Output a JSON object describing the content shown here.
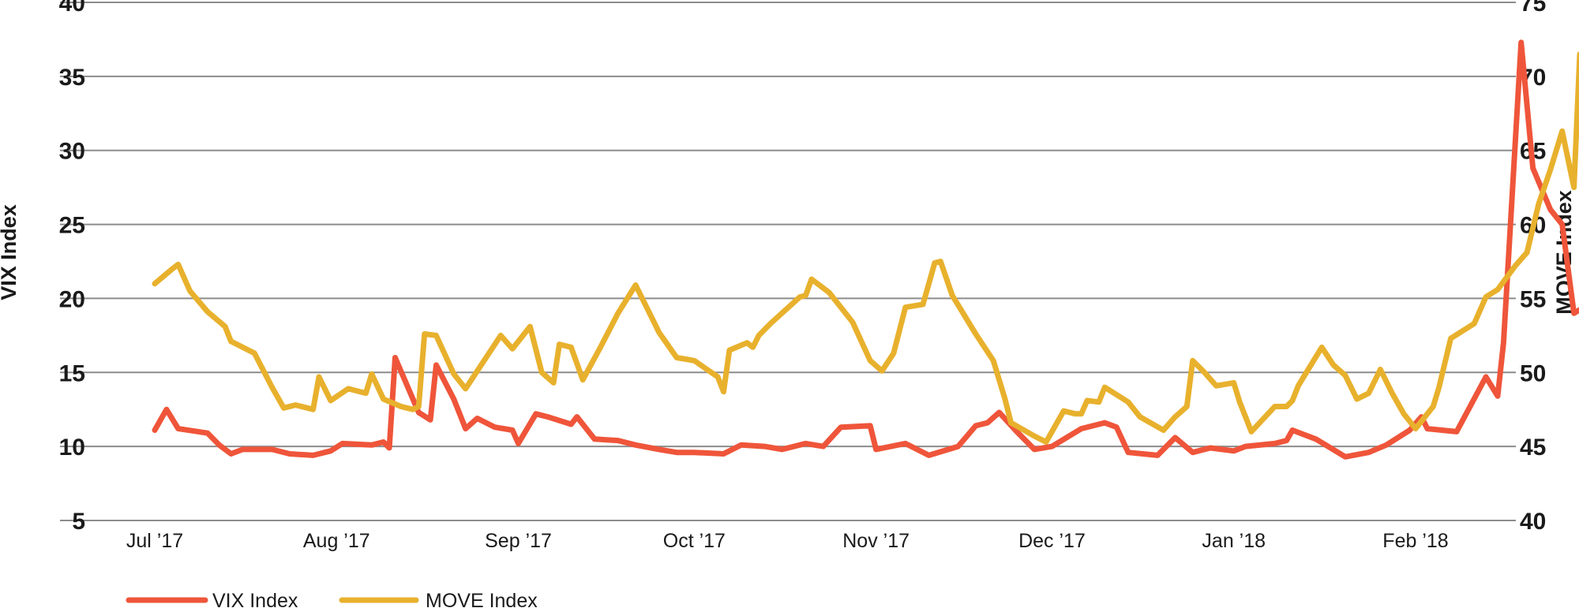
{
  "chart_data": {
    "type": "line",
    "title": "",
    "y_left": {
      "label": "VIX Index",
      "ticks": [
        5,
        10,
        15,
        20,
        25,
        30,
        35,
        40
      ],
      "range": [
        5,
        40
      ]
    },
    "y_right": {
      "label": "MOVE Index",
      "ticks": [
        40,
        45,
        50,
        55,
        60,
        65,
        70,
        75
      ],
      "range": [
        40,
        75
      ]
    },
    "x_ticks": [
      "Jul ’17",
      "Aug ’17",
      "Sep ’17",
      "Oct ’17",
      "Nov ’17",
      "Dec ’17",
      "Jan ’18",
      "Feb ’18"
    ],
    "x_tick_dates": [
      "2017-07-01",
      "2017-08-01",
      "2017-09-01",
      "2017-10-01",
      "2017-11-01",
      "2017-12-01",
      "2018-01-01",
      "2018-02-01"
    ],
    "grid": "horizontal",
    "legend_position": "bottom-left",
    "series": [
      {
        "name": "VIX Index",
        "axis": "left",
        "color": "#ef553a",
        "points": [
          [
            "2017-07-01",
            11.1
          ],
          [
            "2017-07-03",
            12.5
          ],
          [
            "2017-07-05",
            11.2
          ],
          [
            "2017-07-10",
            10.9
          ],
          [
            "2017-07-12",
            10.1
          ],
          [
            "2017-07-14",
            9.5
          ],
          [
            "2017-07-16",
            9.8
          ],
          [
            "2017-07-21",
            9.8
          ],
          [
            "2017-07-24",
            9.5
          ],
          [
            "2017-07-28",
            9.4
          ],
          [
            "2017-07-31",
            9.7
          ],
          [
            "2017-08-02",
            10.2
          ],
          [
            "2017-08-07",
            10.1
          ],
          [
            "2017-08-09",
            10.3
          ],
          [
            "2017-08-10",
            9.9
          ],
          [
            "2017-08-11",
            16.0
          ],
          [
            "2017-08-15",
            12.3
          ],
          [
            "2017-08-17",
            11.8
          ],
          [
            "2017-08-18",
            15.5
          ],
          [
            "2017-08-21",
            13.2
          ],
          [
            "2017-08-23",
            11.2
          ],
          [
            "2017-08-25",
            11.9
          ],
          [
            "2017-08-28",
            11.3
          ],
          [
            "2017-08-31",
            11.1
          ],
          [
            "2017-09-01",
            10.2
          ],
          [
            "2017-09-04",
            12.2
          ],
          [
            "2017-09-06",
            12.0
          ],
          [
            "2017-09-10",
            11.5
          ],
          [
            "2017-09-11",
            12.0
          ],
          [
            "2017-09-14",
            10.5
          ],
          [
            "2017-09-18",
            10.4
          ],
          [
            "2017-09-21",
            10.1
          ],
          [
            "2017-09-25",
            9.8
          ],
          [
            "2017-09-28",
            9.6
          ],
          [
            "2017-10-01",
            9.6
          ],
          [
            "2017-10-06",
            9.5
          ],
          [
            "2017-10-09",
            10.1
          ],
          [
            "2017-10-13",
            10.0
          ],
          [
            "2017-10-16",
            9.8
          ],
          [
            "2017-10-20",
            10.2
          ],
          [
            "2017-10-23",
            10.0
          ],
          [
            "2017-10-26",
            11.3
          ],
          [
            "2017-10-31",
            11.4
          ],
          [
            "2017-11-01",
            9.8
          ],
          [
            "2017-11-06",
            10.2
          ],
          [
            "2017-11-10",
            9.4
          ],
          [
            "2017-11-15",
            10.0
          ],
          [
            "2017-11-18",
            11.4
          ],
          [
            "2017-11-20",
            11.6
          ],
          [
            "2017-11-22",
            12.3
          ],
          [
            "2017-11-25",
            11.0
          ],
          [
            "2017-11-28",
            9.8
          ],
          [
            "2017-12-01",
            10.0
          ],
          [
            "2017-12-06",
            11.2
          ],
          [
            "2017-12-10",
            11.6
          ],
          [
            "2017-12-12",
            11.3
          ],
          [
            "2017-12-14",
            9.6
          ],
          [
            "2017-12-19",
            9.4
          ],
          [
            "2017-12-22",
            10.6
          ],
          [
            "2017-12-25",
            9.6
          ],
          [
            "2017-12-28",
            9.9
          ],
          [
            "2018-01-01",
            9.7
          ],
          [
            "2018-01-03",
            10.0
          ],
          [
            "2018-01-08",
            10.2
          ],
          [
            "2018-01-10",
            10.4
          ],
          [
            "2018-01-11",
            11.1
          ],
          [
            "2018-01-15",
            10.5
          ],
          [
            "2018-01-20",
            9.3
          ],
          [
            "2018-01-24",
            9.6
          ],
          [
            "2018-01-27",
            10.1
          ],
          [
            "2018-01-31",
            11.1
          ],
          [
            "2018-02-02",
            12.0
          ],
          [
            "2018-02-03",
            11.2
          ],
          [
            "2018-02-08",
            11.0
          ],
          [
            "2018-02-13",
            14.7
          ],
          [
            "2018-02-15",
            13.4
          ],
          [
            "2018-02-16",
            17.0
          ],
          [
            "2018-02-19",
            37.3
          ],
          [
            "2018-02-21",
            28.8
          ],
          [
            "2018-02-24",
            26.0
          ],
          [
            "2018-02-26",
            25.0
          ],
          [
            "2018-02-28",
            19.0
          ],
          [
            "2018-03-05",
            20.2
          ],
          [
            "2018-03-07",
            20.0
          ],
          [
            "2018-03-09",
            16.4
          ],
          [
            "2018-03-12",
            16.0
          ],
          [
            "2018-03-14",
            18.4
          ],
          [
            "2018-03-17",
            22.7
          ]
        ]
      },
      {
        "name": "MOVE Index",
        "axis": "right",
        "color": "#e8b12d",
        "points": [
          [
            "2017-07-01",
            56.0
          ],
          [
            "2017-07-04",
            57.0
          ],
          [
            "2017-07-05",
            57.3
          ],
          [
            "2017-07-07",
            55.5
          ],
          [
            "2017-07-10",
            54.1
          ],
          [
            "2017-07-13",
            53.1
          ],
          [
            "2017-07-14",
            52.1
          ],
          [
            "2017-07-18",
            51.3
          ],
          [
            "2017-07-21",
            49.0
          ],
          [
            "2017-07-23",
            47.6
          ],
          [
            "2017-07-25",
            47.8
          ],
          [
            "2017-07-28",
            47.5
          ],
          [
            "2017-07-29",
            49.7
          ],
          [
            "2017-07-31",
            48.1
          ],
          [
            "2017-08-03",
            48.9
          ],
          [
            "2017-08-06",
            48.6
          ],
          [
            "2017-08-07",
            49.9
          ],
          [
            "2017-08-09",
            48.2
          ],
          [
            "2017-08-12",
            47.7
          ],
          [
            "2017-08-14",
            47.5
          ],
          [
            "2017-08-15",
            47.7
          ],
          [
            "2017-08-16",
            52.6
          ],
          [
            "2017-08-18",
            52.5
          ],
          [
            "2017-08-21",
            49.9
          ],
          [
            "2017-08-23",
            48.9
          ],
          [
            "2017-08-25",
            50.1
          ],
          [
            "2017-08-29",
            52.5
          ],
          [
            "2017-08-31",
            51.6
          ],
          [
            "2017-09-03",
            53.1
          ],
          [
            "2017-09-05",
            50.0
          ],
          [
            "2017-09-07",
            49.3
          ],
          [
            "2017-09-08",
            51.9
          ],
          [
            "2017-09-10",
            51.7
          ],
          [
            "2017-09-12",
            49.5
          ],
          [
            "2017-09-15",
            51.7
          ],
          [
            "2017-09-18",
            54.0
          ],
          [
            "2017-09-21",
            55.9
          ],
          [
            "2017-09-25",
            52.7
          ],
          [
            "2017-09-28",
            51.0
          ],
          [
            "2017-10-01",
            50.8
          ],
          [
            "2017-10-05",
            49.7
          ],
          [
            "2017-10-06",
            48.7
          ],
          [
            "2017-10-07",
            51.5
          ],
          [
            "2017-10-10",
            52.0
          ],
          [
            "2017-10-11",
            51.7
          ],
          [
            "2017-10-12",
            52.5
          ],
          [
            "2017-10-14",
            53.3
          ],
          [
            "2017-10-19",
            55.1
          ],
          [
            "2017-10-20",
            55.2
          ],
          [
            "2017-10-21",
            56.3
          ],
          [
            "2017-10-24",
            55.4
          ],
          [
            "2017-10-28",
            53.4
          ],
          [
            "2017-10-31",
            50.8
          ],
          [
            "2017-11-02",
            50.1
          ],
          [
            "2017-11-04",
            51.3
          ],
          [
            "2017-11-06",
            54.4
          ],
          [
            "2017-11-09",
            54.6
          ],
          [
            "2017-11-11",
            57.4
          ],
          [
            "2017-11-12",
            57.5
          ],
          [
            "2017-11-14",
            55.2
          ],
          [
            "2017-11-18",
            52.6
          ],
          [
            "2017-11-21",
            50.8
          ],
          [
            "2017-11-23",
            48.2
          ],
          [
            "2017-11-24",
            46.6
          ],
          [
            "2017-11-28",
            45.7
          ],
          [
            "2017-11-30",
            45.3
          ],
          [
            "2017-12-03",
            47.4
          ],
          [
            "2017-12-05",
            47.2
          ],
          [
            "2017-12-06",
            47.2
          ],
          [
            "2017-12-07",
            48.1
          ],
          [
            "2017-12-09",
            48.0
          ],
          [
            "2017-12-10",
            49.0
          ],
          [
            "2017-12-14",
            48.0
          ],
          [
            "2017-12-16",
            47.0
          ],
          [
            "2017-12-20",
            46.1
          ],
          [
            "2017-12-22",
            47.0
          ],
          [
            "2017-12-24",
            47.7
          ],
          [
            "2017-12-25",
            50.8
          ],
          [
            "2017-12-27",
            50.0
          ],
          [
            "2017-12-29",
            49.1
          ],
          [
            "2018-01-01",
            49.3
          ],
          [
            "2018-01-02",
            48.0
          ],
          [
            "2018-01-04",
            46.0
          ],
          [
            "2018-01-08",
            47.7
          ],
          [
            "2018-01-10",
            47.7
          ],
          [
            "2018-01-11",
            48.1
          ],
          [
            "2018-01-12",
            49.1
          ],
          [
            "2018-01-16",
            51.7
          ],
          [
            "2018-01-18",
            50.5
          ],
          [
            "2018-01-20",
            49.8
          ],
          [
            "2018-01-22",
            48.2
          ],
          [
            "2018-01-24",
            48.6
          ],
          [
            "2018-01-26",
            50.2
          ],
          [
            "2018-01-28",
            48.6
          ],
          [
            "2018-01-30",
            47.2
          ],
          [
            "2018-02-01",
            46.2
          ],
          [
            "2018-02-04",
            47.7
          ],
          [
            "2018-02-05",
            49.0
          ],
          [
            "2018-02-07",
            52.3
          ],
          [
            "2018-02-11",
            53.3
          ],
          [
            "2018-02-13",
            55.1
          ],
          [
            "2018-02-15",
            55.6
          ],
          [
            "2018-02-18",
            57.2
          ],
          [
            "2018-02-20",
            58.1
          ],
          [
            "2018-02-22",
            61.4
          ],
          [
            "2018-02-24",
            63.7
          ],
          [
            "2018-02-26",
            66.3
          ],
          [
            "2018-02-28",
            62.5
          ],
          [
            "2018-03-01",
            71.5
          ],
          [
            "2018-03-03",
            70.8
          ],
          [
            "2018-03-05",
            70.1
          ],
          [
            "2018-03-06",
            68.9
          ],
          [
            "2018-03-07",
            69.6
          ],
          [
            "2018-03-09",
            64.4
          ],
          [
            "2018-03-12",
            62.5
          ],
          [
            "2018-03-14",
            61.3
          ],
          [
            "2018-03-16",
            62.0
          ],
          [
            "2018-03-17",
            64.9
          ],
          [
            "2018-03-19",
            64.6
          ],
          [
            "2018-03-21",
            64.0
          ],
          [
            "2018-03-23",
            62.8
          ],
          [
            "2018-03-26",
            63.6
          ]
        ]
      }
    ]
  }
}
